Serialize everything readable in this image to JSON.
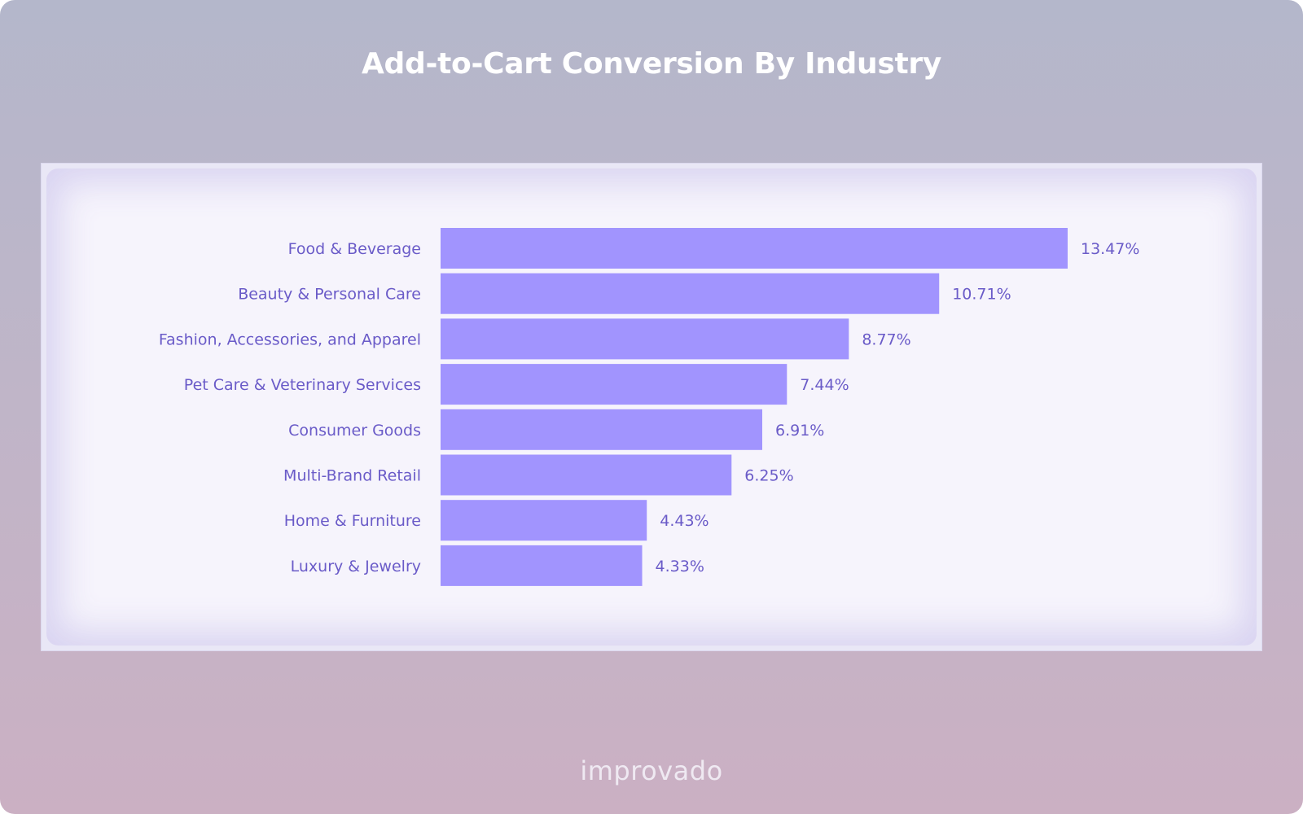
{
  "header": {
    "title": "Add-to-Cart Conversion By Industry"
  },
  "footer": {
    "logo_text": "improvado"
  },
  "colors": {
    "bar": "#a194fe",
    "label": "#6a5bc8",
    "title": "#ffffff"
  },
  "chart_data": {
    "type": "bar",
    "orientation": "horizontal",
    "title": "Add-to-Cart Conversion By Industry",
    "xlabel": "",
    "ylabel": "",
    "grid": false,
    "legend": "none",
    "xlim": [
      0,
      13.47
    ],
    "categories": [
      "Food & Beverage",
      "Beauty & Personal Care",
      "Fashion, Accessories, and Apparel",
      "Pet Care & Veterinary Services",
      "Consumer Goods",
      "Multi-Brand Retail",
      "Home & Furniture",
      "Luxury & Jewelry"
    ],
    "values": [
      13.47,
      10.71,
      8.77,
      7.44,
      6.91,
      6.25,
      4.43,
      4.33
    ],
    "value_labels": [
      "13.47%",
      "10.71%",
      "8.77%",
      "7.44%",
      "6.91%",
      "6.25%",
      "4.43%",
      "4.33%"
    ]
  }
}
